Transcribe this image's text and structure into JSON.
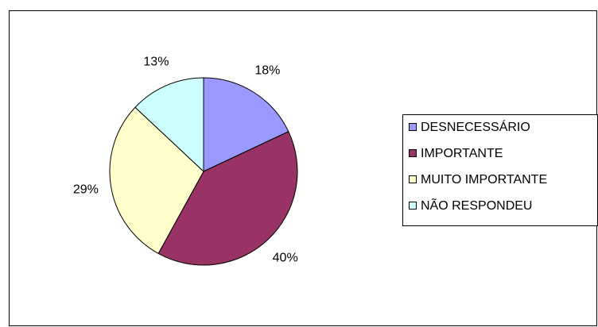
{
  "chart_data": {
    "type": "pie",
    "categories": [
      "DESNECESSÁRIO",
      "IMPORTANTE",
      "MUITO IMPORTANTE",
      "NÃO RESPONDEU"
    ],
    "values": [
      18,
      40,
      29,
      13
    ],
    "value_labels": [
      "18%",
      "40%",
      "29%",
      "13%"
    ],
    "colors": [
      "#9999ff",
      "#993366",
      "#ffffcc",
      "#ccffff"
    ],
    "legend": "right"
  }
}
